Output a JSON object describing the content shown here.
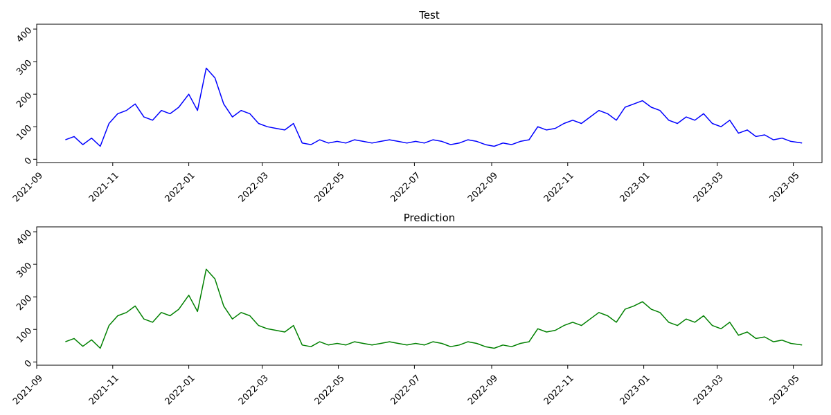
{
  "chart_data": [
    {
      "type": "line",
      "title": "Test",
      "xlabel": "",
      "ylabel": "",
      "color": "#0000ff",
      "x_range": [
        "2021-09-01",
        "2023-05-24"
      ],
      "ylim": [
        -10,
        415
      ],
      "yticks": [
        0,
        100,
        200,
        300,
        400
      ],
      "xticks": [
        "2021-09",
        "2021-11",
        "2022-01",
        "2022-03",
        "2022-05",
        "2022-07",
        "2022-09",
        "2022-11",
        "2023-01",
        "2023-03",
        "2023-05"
      ],
      "x_start": "2021-09-24",
      "x_end": "2023-05-08",
      "grid": false,
      "series": [
        {
          "x": [
            "2021-09-24",
            "2021-10-01",
            "2021-10-08",
            "2021-10-15",
            "2021-10-22",
            "2021-10-29",
            "2021-11-05",
            "2021-11-12",
            "2021-11-19",
            "2021-11-26",
            "2021-12-03",
            "2021-12-10",
            "2021-12-17",
            "2021-12-24",
            "2022-01-01",
            "2022-01-08",
            "2022-01-15",
            "2022-01-22",
            "2022-01-29",
            "2022-02-05",
            "2022-02-12",
            "2022-02-19",
            "2022-02-26",
            "2022-03-05",
            "2022-03-12",
            "2022-03-19",
            "2022-03-26",
            "2022-04-02",
            "2022-04-09",
            "2022-04-16",
            "2022-04-23",
            "2022-04-30",
            "2022-05-07",
            "2022-05-14",
            "2022-05-21",
            "2022-05-28",
            "2022-06-04",
            "2022-06-11",
            "2022-06-18",
            "2022-06-25",
            "2022-07-02",
            "2022-07-09",
            "2022-07-16",
            "2022-07-23",
            "2022-07-30",
            "2022-08-06",
            "2022-08-13",
            "2022-08-20",
            "2022-08-27",
            "2022-09-03",
            "2022-09-10",
            "2022-09-17",
            "2022-09-24",
            "2022-10-01",
            "2022-10-08",
            "2022-10-15",
            "2022-10-22",
            "2022-10-29",
            "2022-11-05",
            "2022-11-12",
            "2022-11-19",
            "2022-11-26",
            "2022-12-03",
            "2022-12-10",
            "2022-12-17",
            "2022-12-24",
            "2022-12-31",
            "2023-01-07",
            "2023-01-14",
            "2023-01-21",
            "2023-01-28",
            "2023-02-04",
            "2023-02-11",
            "2023-02-18",
            "2023-02-25",
            "2023-03-04",
            "2023-03-11",
            "2023-03-18",
            "2023-03-25",
            "2023-04-01",
            "2023-04-08",
            "2023-04-15",
            "2023-04-22",
            "2023-04-29",
            "2023-05-08"
          ],
          "y": [
            60,
            70,
            45,
            65,
            40,
            110,
            140,
            150,
            170,
            130,
            120,
            150,
            140,
            160,
            200,
            150,
            280,
            250,
            170,
            130,
            150,
            140,
            110,
            100,
            95,
            90,
            110,
            50,
            45,
            60,
            50,
            55,
            50,
            60,
            55,
            50,
            55,
            60,
            55,
            50,
            55,
            50,
            60,
            55,
            45,
            50,
            60,
            55,
            45,
            40,
            50,
            45,
            55,
            60,
            100,
            90,
            95,
            110,
            120,
            110,
            130,
            150,
            140,
            120,
            160,
            170,
            180,
            160,
            150,
            120,
            110,
            130,
            120,
            140,
            110,
            100,
            120,
            80,
            90,
            70,
            75,
            60,
            65,
            55,
            50
          ]
        }
      ]
    },
    {
      "type": "line",
      "title": "Prediction",
      "xlabel": "",
      "ylabel": "",
      "color": "#008000",
      "x_range": [
        "2021-09-01",
        "2023-05-24"
      ],
      "ylim": [
        -10,
        415
      ],
      "yticks": [
        0,
        100,
        200,
        300,
        400
      ],
      "xticks": [
        "2021-09",
        "2021-11",
        "2022-01",
        "2022-03",
        "2022-05",
        "2022-07",
        "2022-09",
        "2022-11",
        "2023-01",
        "2023-03",
        "2023-05"
      ],
      "x_start": "2021-09-24",
      "x_end": "2023-05-08",
      "grid": false,
      "series": [
        {
          "x": [
            "2021-09-24",
            "2021-10-01",
            "2021-10-08",
            "2021-10-15",
            "2021-10-22",
            "2021-10-29",
            "2021-11-05",
            "2021-11-12",
            "2021-11-19",
            "2021-11-26",
            "2021-12-03",
            "2021-12-10",
            "2021-12-17",
            "2021-12-24",
            "2022-01-01",
            "2022-01-08",
            "2022-01-15",
            "2022-01-22",
            "2022-01-29",
            "2022-02-05",
            "2022-02-12",
            "2022-02-19",
            "2022-02-26",
            "2022-03-05",
            "2022-03-12",
            "2022-03-19",
            "2022-03-26",
            "2022-04-02",
            "2022-04-09",
            "2022-04-16",
            "2022-04-23",
            "2022-04-30",
            "2022-05-07",
            "2022-05-14",
            "2022-05-21",
            "2022-05-28",
            "2022-06-04",
            "2022-06-11",
            "2022-06-18",
            "2022-06-25",
            "2022-07-02",
            "2022-07-09",
            "2022-07-16",
            "2022-07-23",
            "2022-07-30",
            "2022-08-06",
            "2022-08-13",
            "2022-08-20",
            "2022-08-27",
            "2022-09-03",
            "2022-09-10",
            "2022-09-17",
            "2022-09-24",
            "2022-10-01",
            "2022-10-08",
            "2022-10-15",
            "2022-10-22",
            "2022-10-29",
            "2022-11-05",
            "2022-11-12",
            "2022-11-19",
            "2022-11-26",
            "2022-12-03",
            "2022-12-10",
            "2022-12-17",
            "2022-12-24",
            "2022-12-31",
            "2023-01-07",
            "2023-01-14",
            "2023-01-21",
            "2023-01-28",
            "2023-02-04",
            "2023-02-11",
            "2023-02-18",
            "2023-02-25",
            "2023-03-04",
            "2023-03-11",
            "2023-03-18",
            "2023-03-25",
            "2023-04-01",
            "2023-04-08",
            "2023-04-15",
            "2023-04-22",
            "2023-04-29",
            "2023-05-08"
          ],
          "y": [
            62,
            72,
            48,
            68,
            42,
            112,
            142,
            152,
            172,
            132,
            122,
            152,
            142,
            162,
            205,
            155,
            285,
            255,
            172,
            132,
            152,
            142,
            112,
            102,
            97,
            92,
            112,
            52,
            47,
            62,
            52,
            57,
            52,
            62,
            57,
            52,
            57,
            62,
            57,
            52,
            57,
            52,
            62,
            57,
            47,
            52,
            62,
            57,
            47,
            42,
            52,
            47,
            57,
            62,
            102,
            92,
            97,
            112,
            122,
            112,
            132,
            152,
            142,
            122,
            162,
            172,
            185,
            162,
            152,
            122,
            112,
            132,
            122,
            142,
            112,
            102,
            122,
            82,
            92,
            72,
            77,
            62,
            67,
            57,
            52
          ]
        }
      ]
    }
  ]
}
